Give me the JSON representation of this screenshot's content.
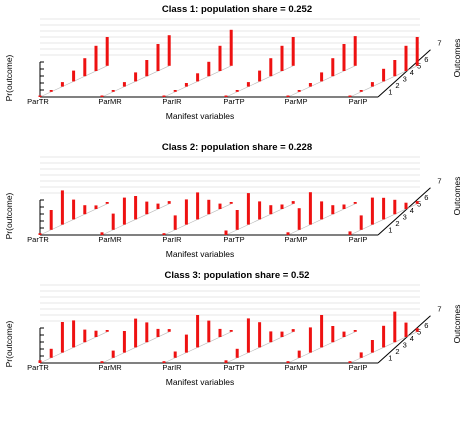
{
  "chart_data": [
    {
      "type": "bar",
      "title": "Class 1: population share = 0.252",
      "ylabel": "Pr(outcome)",
      "xlabel": "Manifest variables",
      "zlabel": "Outcomes",
      "variables": [
        "ParTR",
        "ParMR",
        "ParIR",
        "ParTP",
        "ParMP",
        "ParIP"
      ],
      "outcomes": [
        "1",
        "2",
        "3",
        "4",
        "5",
        "6",
        "7"
      ],
      "ylim": [
        0,
        1
      ],
      "bar_color": "#ee1111",
      "values": [
        [
          0.01,
          0.02,
          0.05,
          0.12,
          0.2,
          0.28,
          0.32
        ],
        [
          0.01,
          0.02,
          0.05,
          0.1,
          0.18,
          0.3,
          0.34
        ],
        [
          0.01,
          0.02,
          0.04,
          0.09,
          0.16,
          0.28,
          0.4
        ],
        [
          0.01,
          0.02,
          0.05,
          0.12,
          0.2,
          0.28,
          0.32
        ],
        [
          0.01,
          0.02,
          0.04,
          0.1,
          0.2,
          0.3,
          0.33
        ],
        [
          0.01,
          0.02,
          0.05,
          0.14,
          0.18,
          0.28,
          0.32
        ]
      ]
    },
    {
      "type": "bar",
      "title": "Class 2: population share = 0.228",
      "ylabel": "Pr(outcome)",
      "xlabel": "Manifest variables",
      "zlabel": "Outcomes",
      "variables": [
        "ParTR",
        "ParMR",
        "ParIR",
        "ParTP",
        "ParMP",
        "ParIP"
      ],
      "outcomes": [
        "1",
        "2",
        "3",
        "4",
        "5",
        "6",
        "7"
      ],
      "ylim": [
        0,
        1
      ],
      "bar_color": "#ee1111",
      "values": [
        [
          0.02,
          0.22,
          0.38,
          0.22,
          0.1,
          0.04,
          0.02
        ],
        [
          0.03,
          0.18,
          0.3,
          0.26,
          0.14,
          0.06,
          0.03
        ],
        [
          0.02,
          0.16,
          0.28,
          0.3,
          0.16,
          0.06,
          0.02
        ],
        [
          0.05,
          0.22,
          0.35,
          0.2,
          0.1,
          0.05,
          0.03
        ],
        [
          0.03,
          0.24,
          0.36,
          0.2,
          0.1,
          0.05,
          0.02
        ],
        [
          0.04,
          0.16,
          0.3,
          0.24,
          0.16,
          0.07,
          0.03
        ]
      ]
    },
    {
      "type": "bar",
      "title": "Class 3: population share = 0.52",
      "ylabel": "Pr(outcome)",
      "xlabel": "Manifest variables",
      "zlabel": "Outcomes",
      "variables": [
        "ParTR",
        "ParMR",
        "ParIR",
        "ParTP",
        "ParMP",
        "ParIP"
      ],
      "outcomes": [
        "1",
        "2",
        "3",
        "4",
        "5",
        "6",
        "7"
      ],
      "ylim": [
        0,
        1
      ],
      "bar_color": "#ee1111",
      "values": [
        [
          0.03,
          0.1,
          0.34,
          0.3,
          0.14,
          0.07,
          0.02
        ],
        [
          0.02,
          0.08,
          0.24,
          0.32,
          0.22,
          0.09,
          0.03
        ],
        [
          0.02,
          0.07,
          0.2,
          0.36,
          0.24,
          0.09,
          0.02
        ],
        [
          0.03,
          0.1,
          0.38,
          0.28,
          0.12,
          0.06,
          0.03
        ],
        [
          0.02,
          0.08,
          0.28,
          0.36,
          0.18,
          0.06,
          0.02
        ],
        [
          0.02,
          0.06,
          0.14,
          0.24,
          0.34,
          0.16,
          0.04
        ]
      ]
    }
  ]
}
